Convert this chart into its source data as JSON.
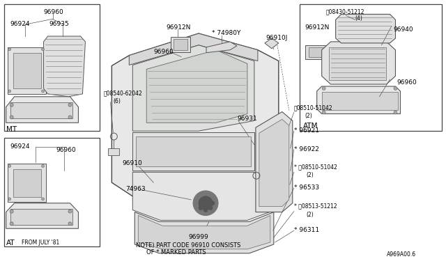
{
  "bg_color": "#ffffff",
  "line_color": "#555555",
  "text_color": "#000000",
  "fig_width": 6.4,
  "fig_height": 3.72,
  "diagram_id": "A969A00.6",
  "note_line1": "NOTE) PART CODE 96910 CONSISTS",
  "note_line2": "OF * MARKED PARTS",
  "mt_label": "MT",
  "at_label": "AT",
  "atm_label": "ATM",
  "from_july": "FROM JULY '81"
}
